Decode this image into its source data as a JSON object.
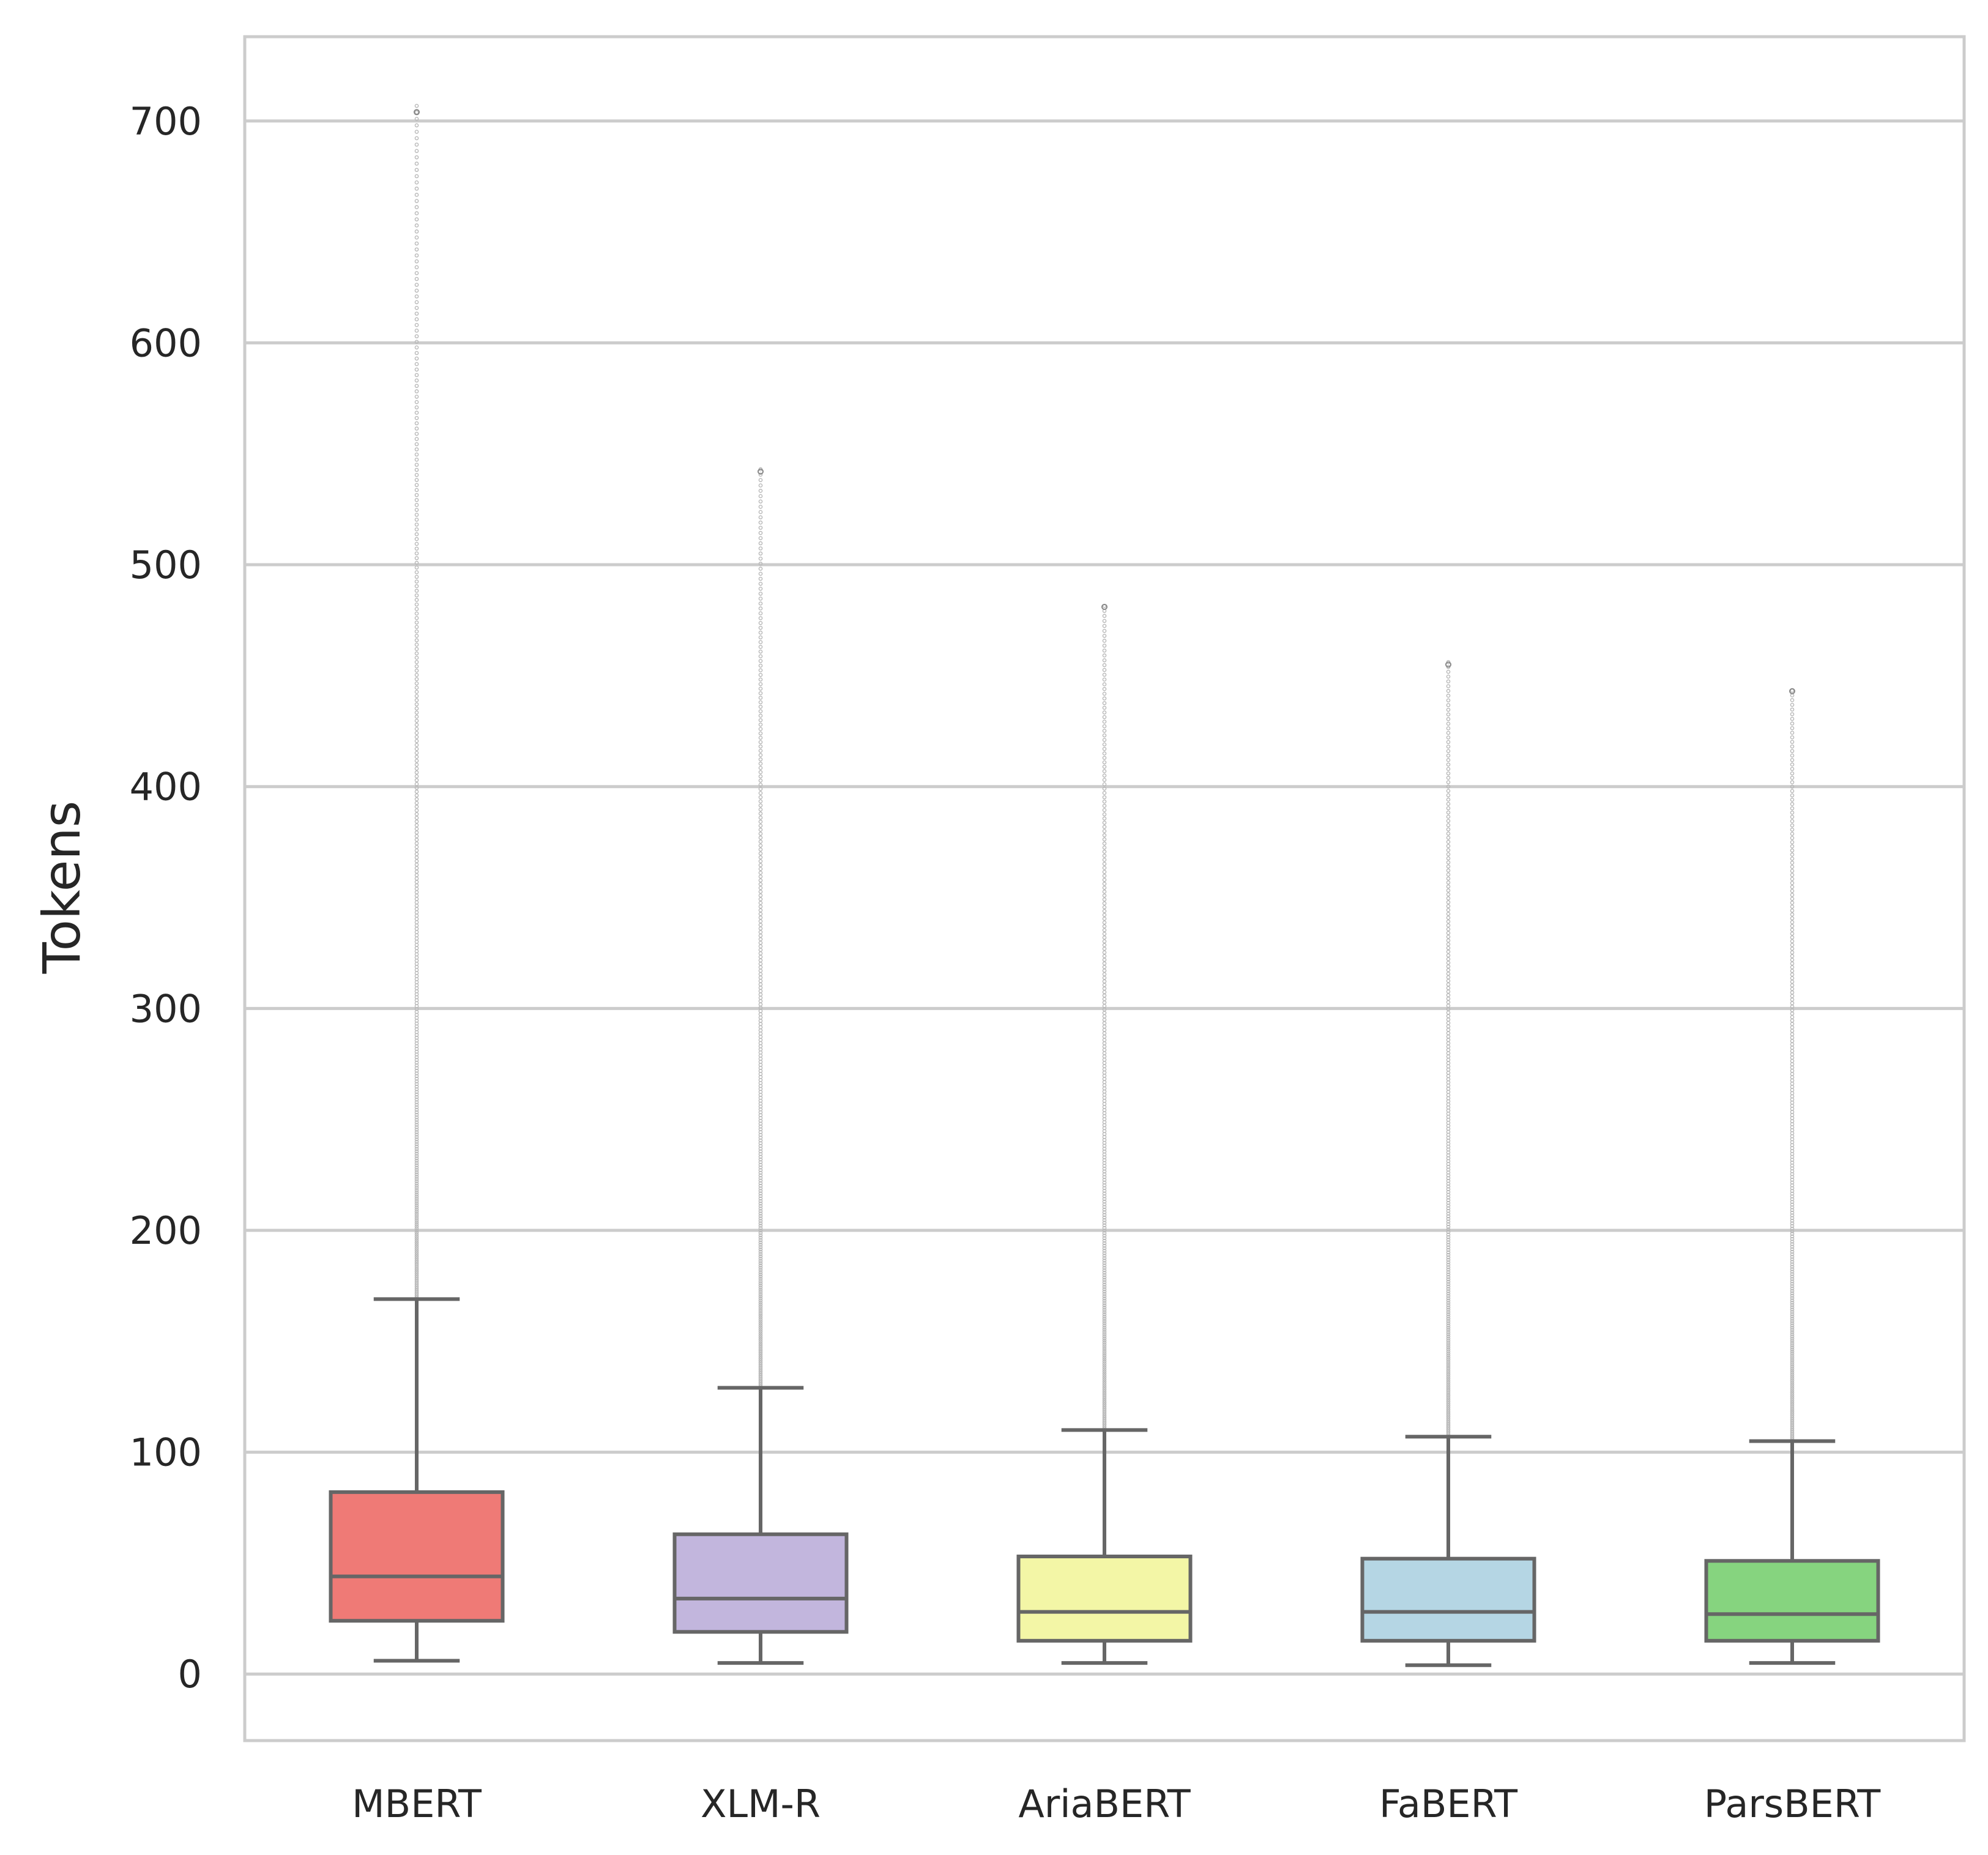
{
  "chart_data": {
    "type": "box",
    "title": "",
    "xlabel": "",
    "ylabel": "Tokens",
    "ylim": [
      -30,
      738
    ],
    "yticks": [
      "0",
      "100",
      "200",
      "300",
      "400",
      "500",
      "600",
      "700"
    ],
    "grid": true,
    "legend": "none",
    "categories": [
      "MBERT",
      "XLM-R",
      "AriaBERT",
      "FaBERT",
      "ParsBERT"
    ],
    "series": [
      {
        "color": "#ef7a76",
        "whisker_low": 6,
        "q1": 24,
        "median": 44,
        "q3": 82,
        "whisker_high": 169,
        "max_outlier": 704
      },
      {
        "color": "#c2b6dd",
        "whisker_low": 5,
        "q1": 19,
        "median": 34,
        "q3": 63,
        "whisker_high": 129,
        "max_outlier": 542
      },
      {
        "color": "#f3f6a6",
        "whisker_low": 5,
        "q1": 15,
        "median": 28,
        "q3": 53,
        "whisker_high": 110,
        "max_outlier": 481
      },
      {
        "color": "#b5d6e4",
        "whisker_low": 4,
        "q1": 15,
        "median": 28,
        "q3": 52,
        "whisker_high": 107,
        "max_outlier": 455
      },
      {
        "color": "#86d47f",
        "whisker_low": 5,
        "q1": 15,
        "median": 27,
        "q3": 51,
        "whisker_high": 105,
        "max_outlier": 443
      }
    ],
    "colors": {
      "frame": "#cccccc",
      "grid": "#cccccc",
      "line": "#666666",
      "text": "#262626",
      "outlier": "#b8b8b8"
    }
  }
}
